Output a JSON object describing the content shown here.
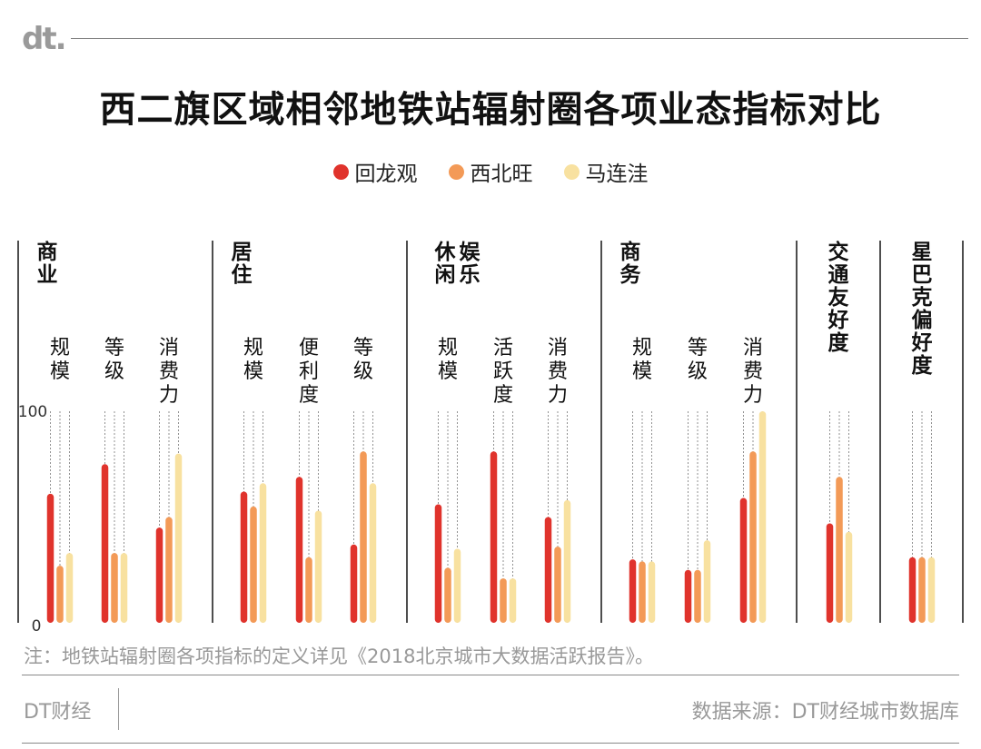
{
  "logo": "dt.",
  "title": "西二旗区域相邻地铁站辐射圈各项业态指标对比",
  "colors": {
    "回龙观": "#e0332c",
    "西北旺": "#f39a57",
    "马连洼": "#f8e1a0"
  },
  "chart_data": {
    "type": "bar",
    "title": "西二旗区域相邻地铁站辐射圈各项业态指标对比",
    "legend": [
      "回龙观",
      "西北旺",
      "马连洼"
    ],
    "ylim": [
      0,
      100
    ],
    "yticks": [
      "100",
      "0"
    ],
    "groups": [
      {
        "name": "商业",
        "metrics": [
          {
            "name": "规模",
            "values": [
              61,
              27,
              33
            ]
          },
          {
            "name": "等级",
            "values": [
              75,
              33,
              33
            ]
          },
          {
            "name": "消费力",
            "values": [
              45,
              50,
              80
            ]
          }
        ]
      },
      {
        "name": "居住",
        "metrics": [
          {
            "name": "规模",
            "values": [
              62,
              55,
              66
            ]
          },
          {
            "name": "便利度",
            "values": [
              69,
              31,
              53
            ]
          },
          {
            "name": "等级",
            "values": [
              37,
              81,
              66
            ]
          }
        ]
      },
      {
        "name": "休闲娱乐",
        "metrics": [
          {
            "name": "规模",
            "values": [
              56,
              26,
              35
            ]
          },
          {
            "name": "活跃度",
            "values": [
              81,
              21,
              21
            ]
          },
          {
            "name": "消费力",
            "values": [
              50,
              36,
              58
            ]
          }
        ]
      },
      {
        "name": "商务",
        "metrics": [
          {
            "name": "规模",
            "values": [
              30,
              29,
              29
            ]
          },
          {
            "name": "等级",
            "values": [
              25,
              25,
              39
            ]
          },
          {
            "name": "消费力",
            "values": [
              59,
              81,
              100
            ]
          }
        ]
      },
      {
        "name": "交通友好度",
        "metrics": [
          {
            "name": "",
            "values": [
              47,
              69,
              43
            ]
          }
        ]
      },
      {
        "name": "星巴克偏好度",
        "metrics": [
          {
            "name": "",
            "values": [
              31,
              31,
              31
            ]
          }
        ]
      }
    ]
  },
  "note": "注：地铁站辐射圈各项指标的定义详见《2018北京城市大数据活跃报告》。",
  "footer": {
    "brand": "DT财经",
    "source": "数据来源：DT财经城市数据库"
  }
}
